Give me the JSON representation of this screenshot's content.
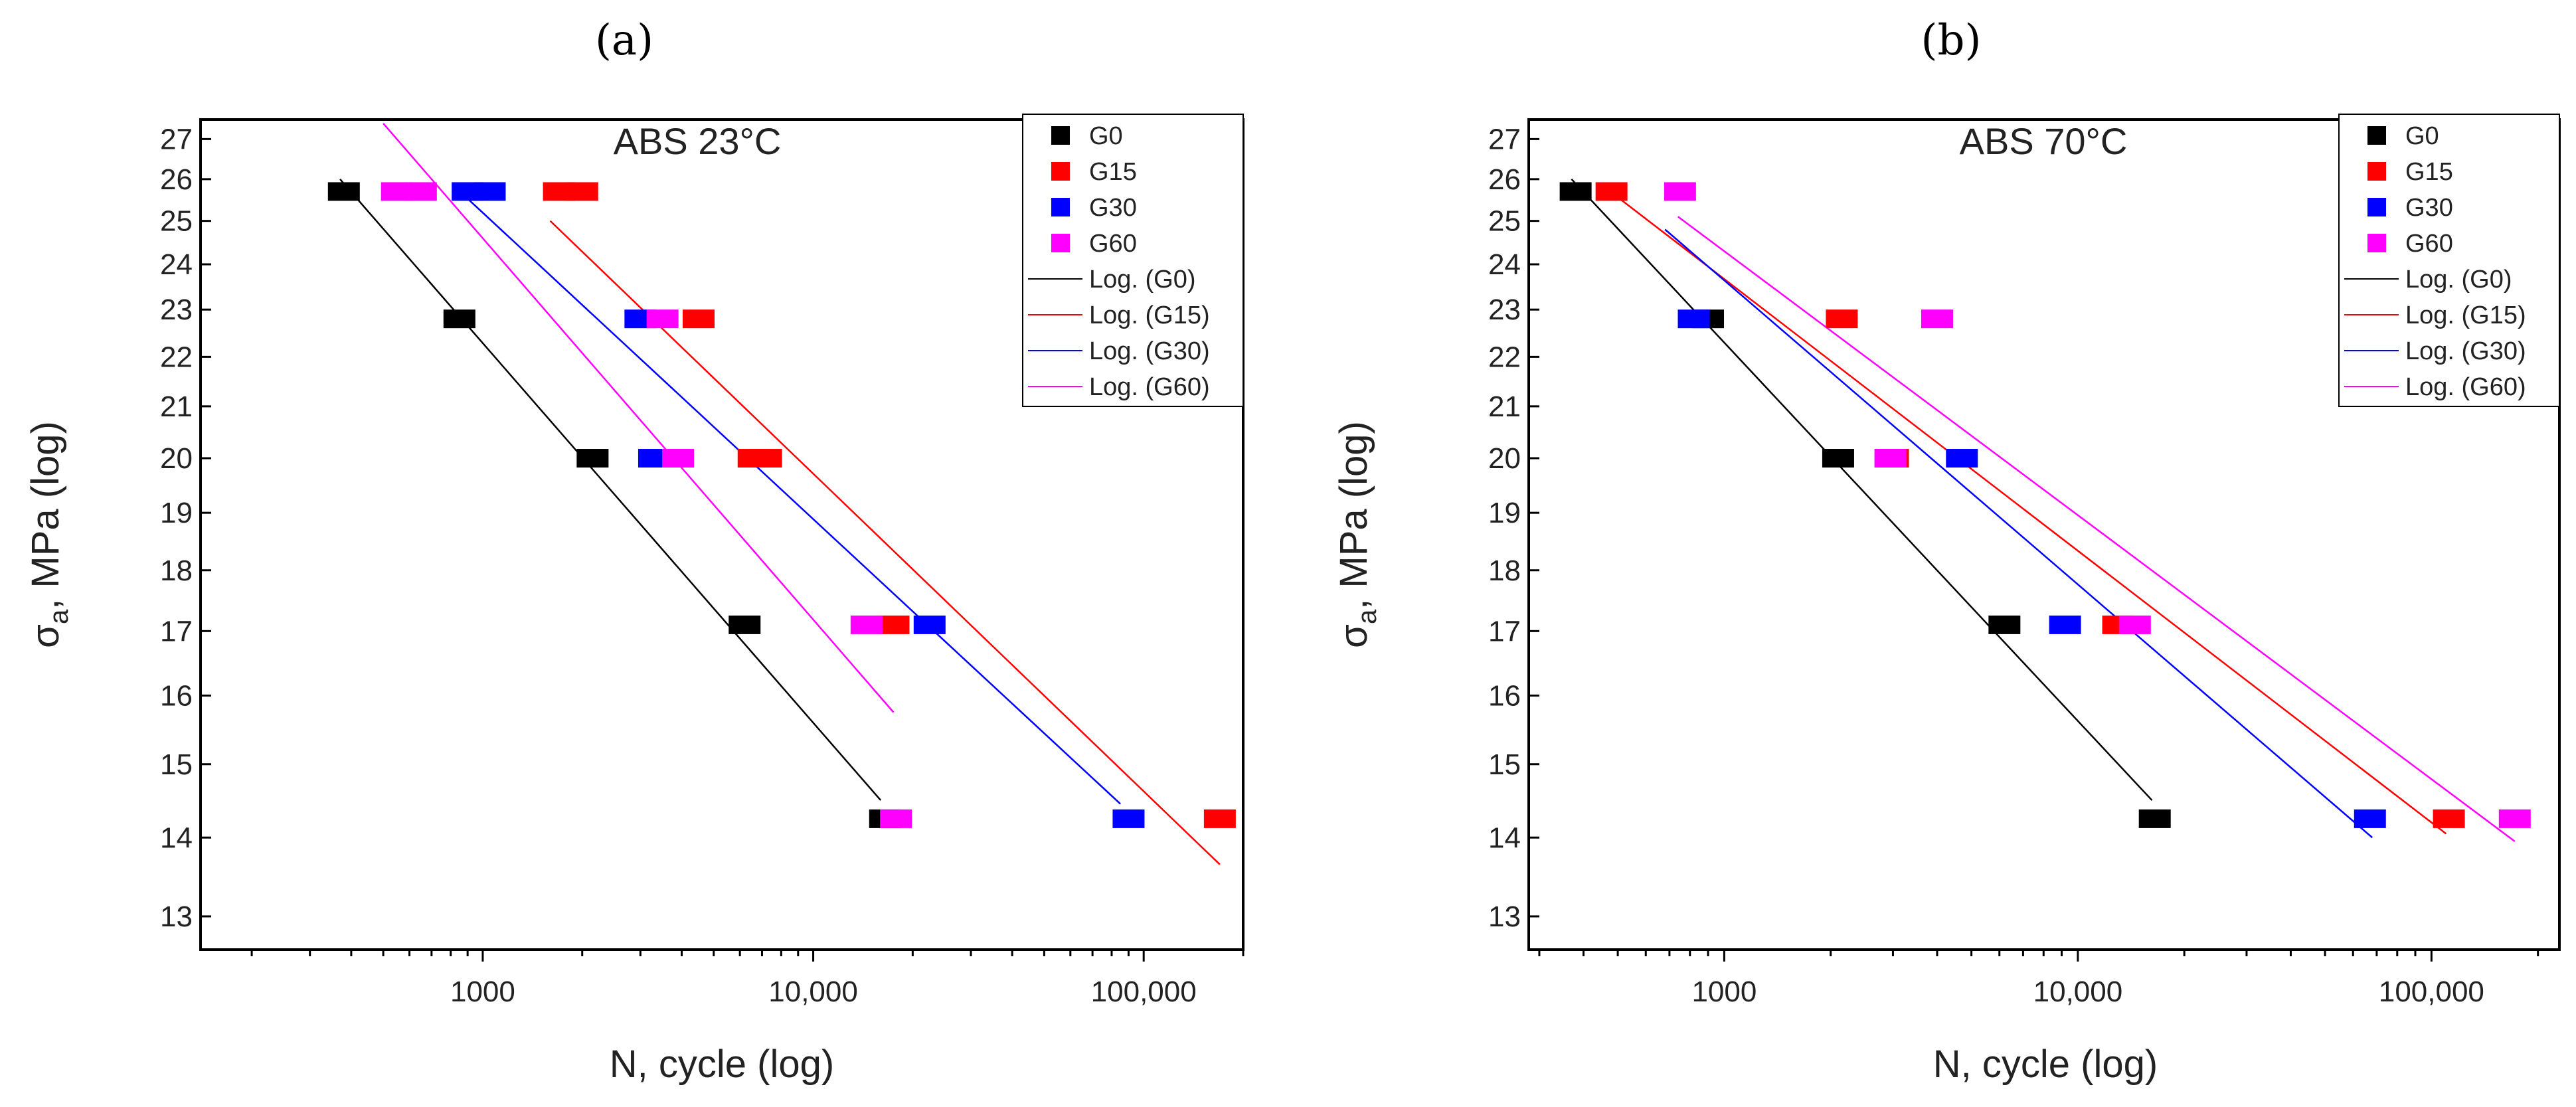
{
  "chart_data": [
    {
      "panel_label": "(a)",
      "type": "scatter",
      "annotation": "ABS 23°C",
      "xlabel": "N, cycle (log)",
      "ylabel_main": "σ",
      "ylabel_sub": "a",
      "ylabel_rest": ", MPa (log)",
      "xscale": "log",
      "yscale": "log",
      "xlim": [
        140,
        200000
      ],
      "ylim": [
        12.6,
        27.5
      ],
      "xticks": [
        1000,
        10000,
        100000
      ],
      "xtick_labels": [
        "1000",
        "10,000",
        "100,000"
      ],
      "yticks": [
        13,
        14,
        15,
        16,
        17,
        18,
        19,
        20,
        21,
        22,
        23,
        24,
        25,
        26,
        27
      ],
      "legend_position": "top-right",
      "series": [
        {
          "name": "G0",
          "color": "#000000",
          "x": [
            380,
            850,
            2150,
            6200,
            16500
          ],
          "y": [
            25.7,
            22.8,
            20.0,
            17.1,
            14.25
          ]
        },
        {
          "name": "G15",
          "color": "#ff0000",
          "x": [
            1700,
            2000,
            4500,
            6600,
            7200,
            17500,
            170000
          ],
          "y": [
            25.7,
            25.7,
            22.8,
            20.0,
            20.0,
            17.1,
            14.25
          ]
        },
        {
          "name": "G30",
          "color": "#0000ff",
          "x": [
            900,
            1050,
            3000,
            3300,
            22500,
            90000
          ],
          "y": [
            25.7,
            25.7,
            22.8,
            20.0,
            17.1,
            14.25
          ]
        },
        {
          "name": "G60",
          "color": "#ff00ff",
          "x": [
            550,
            650,
            3500,
            3900,
            14500,
            17800
          ],
          "y": [
            25.7,
            25.7,
            22.8,
            20.0,
            17.1,
            14.25
          ]
        }
      ],
      "trendlines": [
        {
          "name": "Log. (G0)",
          "color": "#000000",
          "x": [
            370,
            16000
          ],
          "y": [
            26.0,
            14.5
          ]
        },
        {
          "name": "Log. (G15)",
          "color": "#ff0000",
          "x": [
            1600,
            170000
          ],
          "y": [
            25.0,
            13.65
          ]
        },
        {
          "name": "Log. (G30)",
          "color": "#0000ff",
          "x": [
            880,
            85000
          ],
          "y": [
            25.6,
            14.45
          ]
        },
        {
          "name": "Log. (G60)",
          "color": "#ff00ff",
          "x": [
            500,
            17500
          ],
          "y": [
            27.4,
            15.75
          ]
        }
      ]
    },
    {
      "panel_label": "(b)",
      "type": "scatter",
      "annotation": "ABS 70°C",
      "xlabel": "N, cycle (log)",
      "ylabel_main": "σ",
      "ylabel_sub": "a",
      "ylabel_rest": ", MPa (log)",
      "xscale": "log",
      "yscale": "log",
      "xlim": [
        280,
        230000
      ],
      "ylim": [
        12.6,
        27.5
      ],
      "xticks": [
        1000,
        10000,
        100000
      ],
      "xtick_labels": [
        "1000",
        "10,000",
        "100,000"
      ],
      "yticks": [
        13,
        14,
        15,
        16,
        17,
        18,
        19,
        20,
        21,
        22,
        23,
        24,
        25,
        26,
        27
      ],
      "legend_position": "top-right",
      "series": [
        {
          "name": "G0",
          "color": "#000000",
          "x": [
            380,
            900,
            2100,
            6200,
            16500
          ],
          "y": [
            25.7,
            22.8,
            20.0,
            17.1,
            14.25
          ]
        },
        {
          "name": "G15",
          "color": "#ff0000",
          "x": [
            480,
            2150,
            3000,
            13000,
            112000
          ],
          "y": [
            25.7,
            22.8,
            20.0,
            17.1,
            14.25
          ]
        },
        {
          "name": "G30",
          "color": "#0000ff",
          "x": [
            820,
            4700,
            9200,
            67000
          ],
          "y": [
            22.8,
            20.0,
            17.1,
            14.25
          ]
        },
        {
          "name": "G60",
          "color": "#ff00ff",
          "x": [
            750,
            4000,
            2950,
            14500,
            172000
          ],
          "y": [
            25.7,
            22.8,
            20.0,
            17.1,
            14.25
          ]
        }
      ],
      "trendlines": [
        {
          "name": "Log. (G0)",
          "color": "#000000",
          "x": [
            370,
            16200
          ],
          "y": [
            26.0,
            14.5
          ]
        },
        {
          "name": "Log. (G15)",
          "color": "#ff0000",
          "x": [
            460,
            110000
          ],
          "y": [
            25.8,
            14.05
          ]
        },
        {
          "name": "Log. (G30)",
          "color": "#0000ff",
          "x": [
            680,
            68000
          ],
          "y": [
            24.8,
            14.0
          ]
        },
        {
          "name": "Log. (G60)",
          "color": "#ff00ff",
          "x": [
            740,
            172000
          ],
          "y": [
            25.1,
            13.95
          ]
        }
      ]
    }
  ]
}
